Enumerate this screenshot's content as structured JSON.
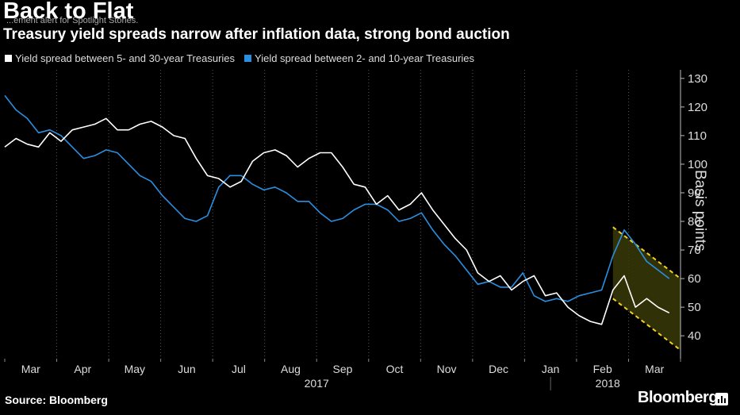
{
  "title": "Back to Flat",
  "overlay_text": "...ement alert for Spotlight Stories.",
  "subtitle": "Treasury yield spreads narrow after inflation data, strong bond auction",
  "source": "Source: Bloomberg",
  "brand": "Bloomberg",
  "colors": {
    "background": "#000000",
    "series1": "#ffffff",
    "series2": "#2a8fe0",
    "trend_band": "#3a3a08",
    "trend_lines": "#f2d21c"
  },
  "chart_data": {
    "type": "line",
    "title": "Back to Flat",
    "subtitle": "Treasury yield spreads narrow after inflation data, strong bond auction",
    "ylabel": "Basis points",
    "ylim": [
      32,
      133
    ],
    "yticks": [
      40,
      50,
      60,
      70,
      80,
      90,
      100,
      110,
      120,
      130
    ],
    "y_axis_side": "right",
    "grid": "vertical dotted lines at month boundaries",
    "legend_position": "top-left",
    "x_month_labels": [
      "Mar",
      "Apr",
      "May",
      "Jun",
      "Jul",
      "Aug",
      "Sep",
      "Oct",
      "Nov",
      "Dec",
      "Jan",
      "Feb",
      "Mar"
    ],
    "x_year_labels": [
      "2017",
      "2018"
    ],
    "x_index_range": [
      0,
      60
    ],
    "series": [
      {
        "name": "Yield spread between 5- and 30-year Treasuries",
        "color": "#ffffff",
        "x": [
          0,
          1,
          2,
          3,
          4,
          5,
          6,
          7,
          8,
          9,
          10,
          11,
          12,
          13,
          14,
          15,
          16,
          17,
          18,
          19,
          20,
          21,
          22,
          23,
          24,
          25,
          26,
          27,
          28,
          29,
          30,
          31,
          32,
          33,
          34,
          35,
          36,
          37,
          38,
          39,
          40,
          41,
          42,
          43,
          44,
          45,
          46,
          47,
          48,
          49,
          50,
          51,
          52,
          53,
          54,
          55,
          56,
          57,
          58,
          59
        ],
        "values": [
          106,
          109,
          107,
          106,
          111,
          108,
          112,
          113,
          114,
          116,
          112,
          112,
          114,
          115,
          113,
          110,
          109,
          102,
          96,
          95,
          92,
          94,
          101,
          104,
          105,
          103,
          99,
          102,
          104,
          104,
          99,
          93,
          92,
          86,
          89,
          84,
          86,
          90,
          84,
          79,
          74,
          70,
          62,
          59,
          61,
          56,
          59,
          61,
          54,
          55,
          50,
          47,
          45,
          44,
          56,
          61,
          50,
          53,
          50,
          48
        ]
      },
      {
        "name": "Yield spread between 2- and 10-year Treasuries",
        "color": "#2a8fe0",
        "x": [
          0,
          1,
          2,
          3,
          4,
          5,
          6,
          7,
          8,
          9,
          10,
          11,
          12,
          13,
          14,
          15,
          16,
          17,
          18,
          19,
          20,
          21,
          22,
          23,
          24,
          25,
          26,
          27,
          28,
          29,
          30,
          31,
          32,
          33,
          34,
          35,
          36,
          37,
          38,
          39,
          40,
          41,
          42,
          43,
          44,
          45,
          46,
          47,
          48,
          49,
          50,
          51,
          52,
          53,
          54,
          55,
          56,
          57,
          58,
          59
        ],
        "values": [
          124,
          119,
          116,
          111,
          112,
          110,
          106,
          102,
          103,
          105,
          104,
          100,
          96,
          94,
          89,
          85,
          81,
          80,
          82,
          92,
          96,
          96,
          93,
          91,
          92,
          90,
          87,
          87,
          83,
          80,
          81,
          84,
          86,
          86,
          84,
          80,
          81,
          83,
          77,
          72,
          68,
          63,
          58,
          59,
          57,
          57,
          62,
          54,
          52,
          53,
          52,
          54,
          55,
          56,
          68,
          77,
          72,
          66,
          63,
          60
        ]
      }
    ],
    "annotations": [
      {
        "type": "trend_channel",
        "x_start": 54,
        "x_end": 60,
        "upper": [
          78,
          60
        ],
        "lower": [
          53,
          35
        ]
      }
    ]
  }
}
